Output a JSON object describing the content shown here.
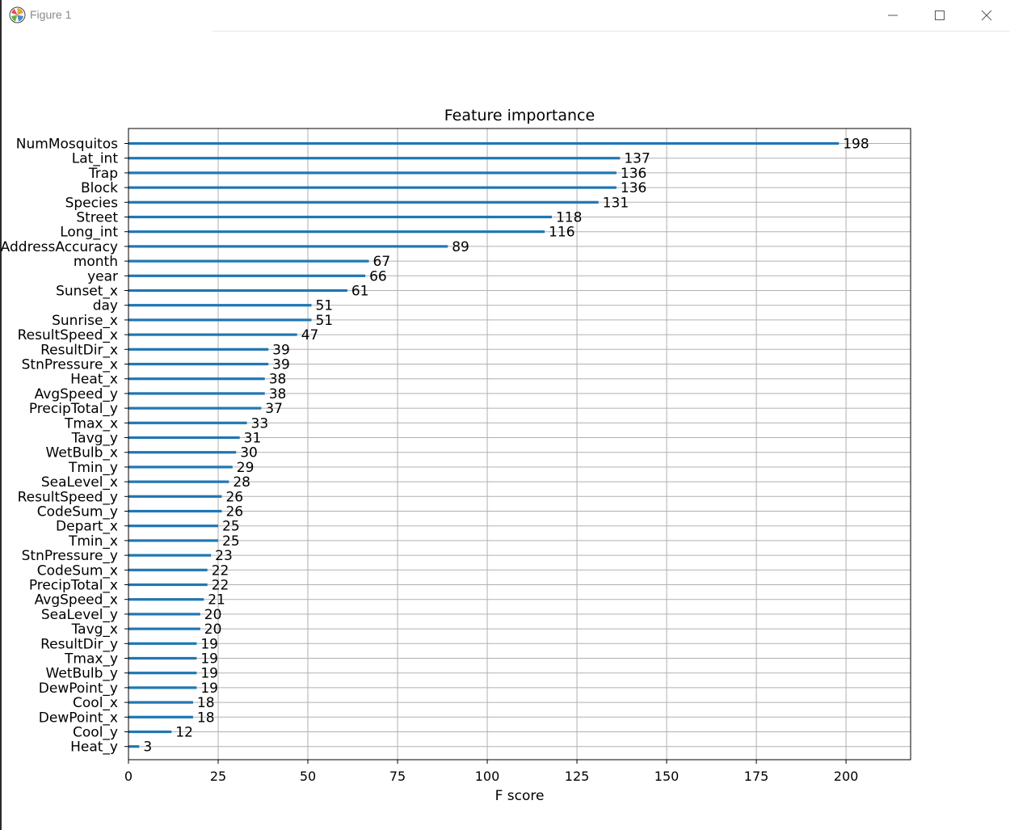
{
  "window": {
    "title": "Figure 1",
    "app_icon": "matplotlib-logo-icon",
    "controls": [
      "minimize-icon",
      "maximize-icon",
      "close-icon"
    ]
  },
  "chart_data": {
    "type": "bar",
    "orientation": "horizontal",
    "title": "Feature importance",
    "xlabel": "F score",
    "ylabel": "",
    "xlim": [
      0,
      218
    ],
    "xticks": [
      0,
      25,
      50,
      75,
      100,
      125,
      150,
      175,
      200
    ],
    "grid": true,
    "bar_color": "#1f77b4",
    "categories": [
      "NumMosquitos",
      "Lat_int",
      "Trap",
      "Block",
      "Species",
      "Street",
      "Long_int",
      "AddressAccuracy",
      "month",
      "year",
      "Sunset_x",
      "day",
      "Sunrise_x",
      "ResultSpeed_x",
      "ResultDir_x",
      "StnPressure_x",
      "Heat_x",
      "AvgSpeed_y",
      "PrecipTotal_y",
      "Tmax_x",
      "Tavg_y",
      "WetBulb_x",
      "Tmin_y",
      "SeaLevel_x",
      "ResultSpeed_y",
      "CodeSum_y",
      "Depart_x",
      "Tmin_x",
      "StnPressure_y",
      "CodeSum_x",
      "PrecipTotal_x",
      "AvgSpeed_x",
      "SeaLevel_y",
      "Tavg_x",
      "ResultDir_y",
      "Tmax_y",
      "WetBulb_y",
      "DewPoint_y",
      "Cool_x",
      "DewPoint_x",
      "Cool_y",
      "Heat_y"
    ],
    "values": [
      198,
      137,
      136,
      136,
      131,
      118,
      116,
      89,
      67,
      66,
      61,
      51,
      51,
      47,
      39,
      39,
      38,
      38,
      37,
      33,
      31,
      30,
      29,
      28,
      26,
      26,
      25,
      25,
      23,
      22,
      22,
      21,
      20,
      20,
      19,
      19,
      19,
      19,
      18,
      18,
      12,
      3
    ]
  }
}
